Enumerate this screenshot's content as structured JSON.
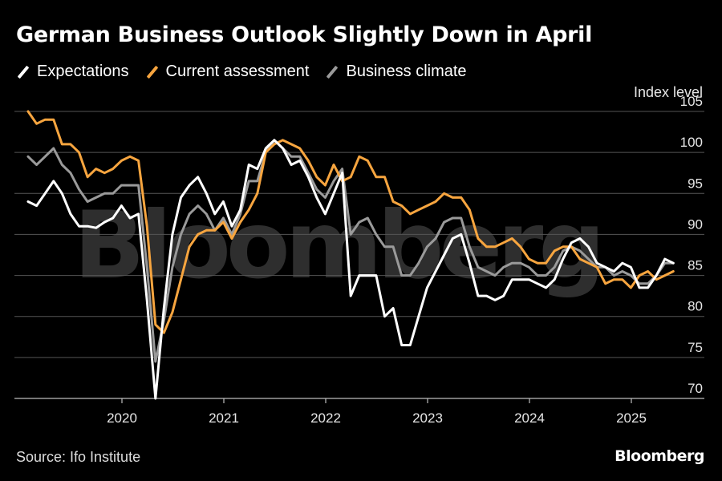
{
  "header": {
    "title": "German Business Outlook Slightly Down in April"
  },
  "footer": {
    "source": "Source: Ifo Institute",
    "brand": "Bloomberg"
  },
  "watermark": "Bloomberg",
  "colors": {
    "expectations": "#ffffff",
    "current": "#f7a53f",
    "climate": "#9a9a9a",
    "grid": "#555555",
    "axis": "#bdbdbd"
  },
  "chart_data": {
    "type": "line",
    "title": "German Business Outlook Slightly Down in April",
    "ylabel": "Index level",
    "xlabel": "",
    "ylim": [
      70,
      105
    ],
    "yticks": [
      70,
      75,
      80,
      85,
      90,
      95,
      100,
      105
    ],
    "xticks": [
      "2020",
      "2021",
      "2022",
      "2023",
      "2024",
      "2025"
    ],
    "x_start": "2019-01",
    "x_end": "2025-04",
    "legend": [
      "Expectations",
      "Current assessment",
      "Business climate"
    ],
    "series": [
      {
        "name": "Expectations",
        "key": "expectations",
        "values": [
          94.0,
          93.5,
          95.0,
          96.5,
          95.0,
          92.5,
          91.0,
          91.0,
          90.8,
          91.5,
          92.0,
          93.5,
          92.0,
          92.5,
          82.0,
          70.0,
          81.0,
          90.0,
          94.5,
          96.0,
          97.0,
          95.0,
          92.5,
          94.0,
          91.0,
          93.0,
          98.5,
          98.0,
          100.5,
          101.5,
          100.5,
          98.5,
          99.0,
          97.0,
          94.5,
          92.5,
          95.0,
          97.5,
          82.5,
          85.0,
          85.0,
          85.0,
          80.0,
          81.0,
          76.5,
          76.5,
          80.0,
          83.5,
          85.5,
          87.5,
          89.5,
          90.0,
          86.5,
          82.5,
          82.5,
          82.0,
          82.5,
          84.5,
          84.5,
          84.5,
          84.0,
          83.5,
          84.5,
          87.0,
          89.0,
          89.5,
          88.5,
          86.5,
          86.0,
          85.5,
          86.5,
          86.0,
          83.5,
          83.5,
          85.0,
          87.0,
          86.5
        ]
      },
      {
        "name": "Current assessment",
        "key": "current",
        "values": [
          105.0,
          103.5,
          104.0,
          104.0,
          101.0,
          101.0,
          100.0,
          97.0,
          98.0,
          97.5,
          98.0,
          99.0,
          99.5,
          99.0,
          91.0,
          79.0,
          78.0,
          80.5,
          84.5,
          88.5,
          90.0,
          90.5,
          90.5,
          91.5,
          89.5,
          91.5,
          93.0,
          95.0,
          100.0,
          101.0,
          101.5,
          101.0,
          100.5,
          99.0,
          97.0,
          96.0,
          98.5,
          96.5,
          97.0,
          99.5,
          99.0,
          97.0,
          97.0,
          94.0,
          93.5,
          92.5,
          93.0,
          93.5,
          94.0,
          95.0,
          94.5,
          94.5,
          93.0,
          89.5,
          88.5,
          88.5,
          89.0,
          89.5,
          88.5,
          87.0,
          86.5,
          86.5,
          88.0,
          88.5,
          88.5,
          87.0,
          86.5,
          86.0,
          84.0,
          84.5,
          84.5,
          83.5,
          85.0,
          85.5,
          84.5,
          85.0,
          85.5
        ]
      },
      {
        "name": "Business climate",
        "key": "climate",
        "values": [
          99.5,
          98.5,
          99.5,
          100.5,
          98.5,
          97.5,
          95.5,
          94.0,
          94.5,
          95.0,
          95.0,
          96.0,
          96.0,
          96.0,
          86.0,
          74.5,
          79.5,
          86.0,
          90.0,
          92.5,
          93.5,
          92.5,
          90.5,
          92.0,
          90.0,
          92.5,
          96.5,
          96.5,
          100.0,
          101.5,
          100.5,
          99.5,
          99.5,
          97.5,
          95.5,
          94.5,
          96.5,
          98.0,
          90.0,
          91.5,
          92.0,
          90.0,
          88.5,
          88.5,
          85.0,
          85.0,
          86.5,
          88.5,
          89.5,
          91.5,
          92.0,
          92.0,
          88.5,
          86.0,
          85.5,
          85.0,
          86.0,
          86.5,
          86.5,
          86.0,
          85.0,
          85.0,
          86.0,
          88.0,
          88.5,
          88.0,
          87.0,
          86.0,
          86.0,
          85.0,
          85.5,
          85.0,
          84.0,
          84.0,
          85.0,
          86.5,
          86.5
        ]
      }
    ]
  }
}
